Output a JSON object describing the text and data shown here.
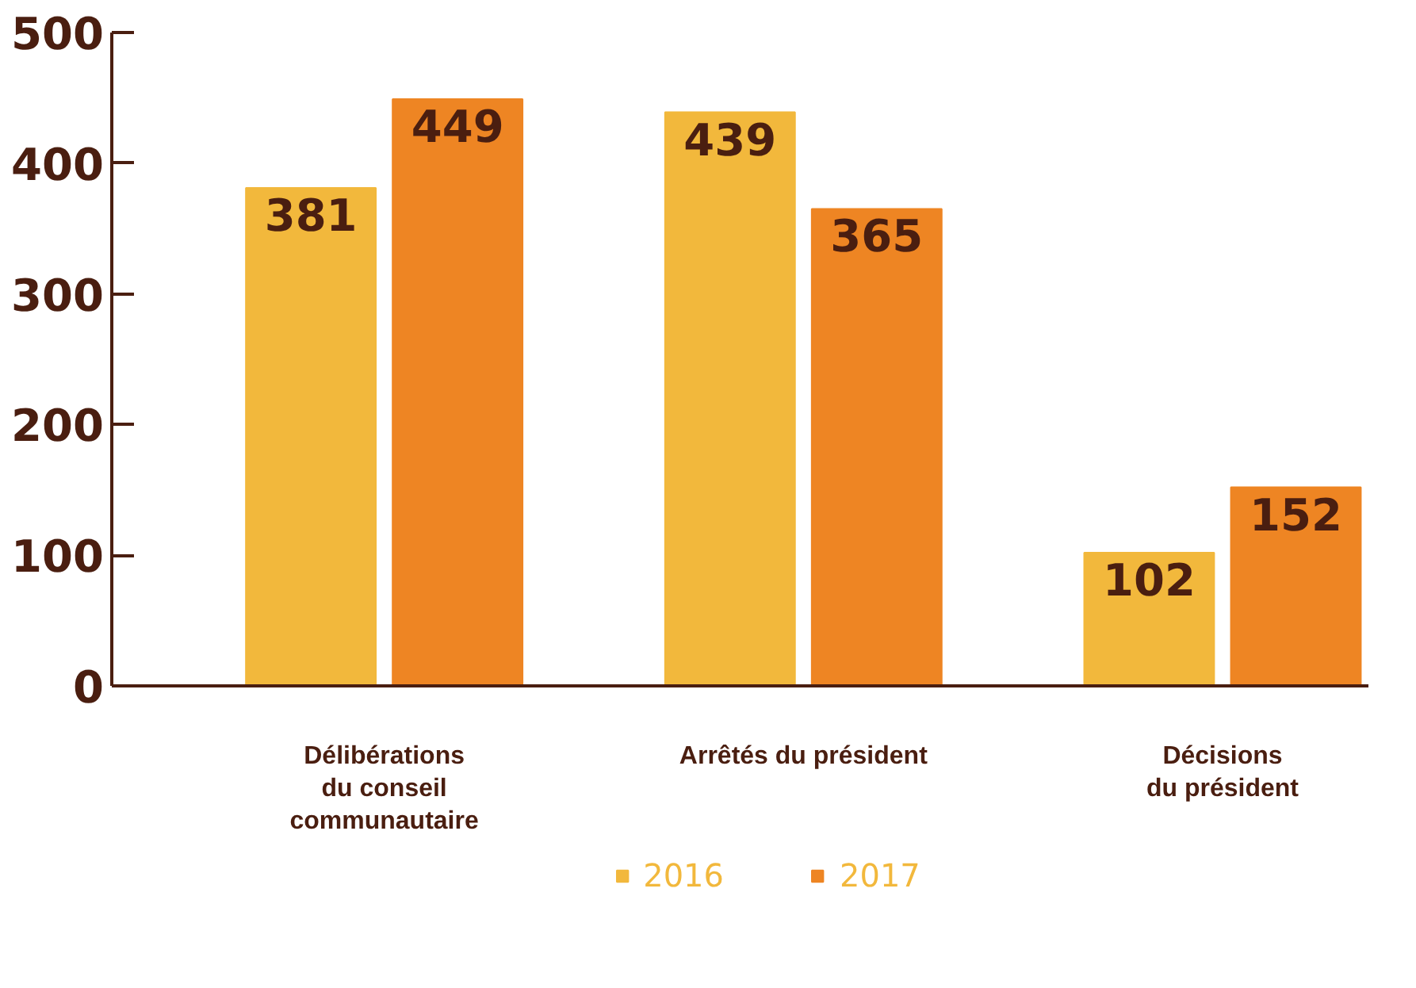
{
  "chart_data": {
    "type": "bar",
    "categories": [
      "Délibérations\ndu conseil\ncommunautaire",
      "Arrêtés du président",
      "Décisions\ndu président"
    ],
    "series": [
      {
        "name": "2016",
        "color": "#f2b83c",
        "values": [
          381,
          439,
          102
        ]
      },
      {
        "name": "2017",
        "color": "#ee8523",
        "values": [
          449,
          365,
          152
        ]
      }
    ],
    "ylim": [
      0,
      500
    ],
    "yticks": [
      0,
      100,
      200,
      300,
      400,
      500
    ],
    "grid": false,
    "legend": "bottom",
    "data_labels": true
  }
}
